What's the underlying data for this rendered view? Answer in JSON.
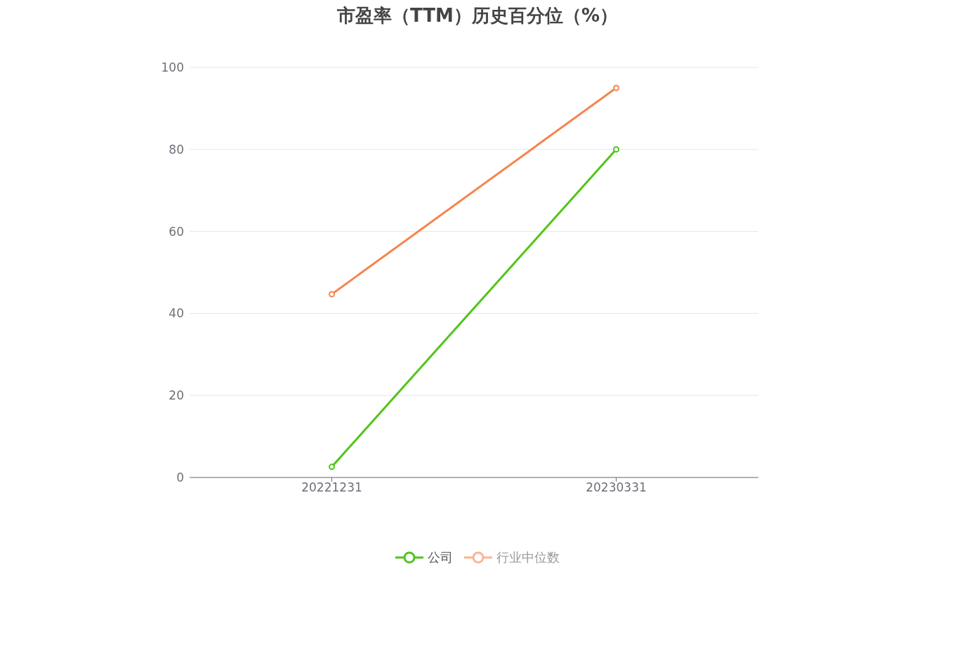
{
  "chart_data": {
    "type": "line",
    "title": "市盈率（TTM）历史百分位（%）",
    "categories": [
      "20221231",
      "20230331"
    ],
    "series": [
      {
        "name": "公司",
        "color": "#52c41a",
        "values": [
          2.6,
          80
        ]
      },
      {
        "name": "行业中位数",
        "color": "#f5854f",
        "values": [
          44.7,
          95
        ]
      }
    ],
    "ylim": [
      0,
      100
    ],
    "yticks": [
      0,
      20,
      40,
      60,
      80,
      100
    ],
    "grid": "y",
    "legend": "bottom",
    "marker": "circle",
    "line_style": "solid"
  }
}
